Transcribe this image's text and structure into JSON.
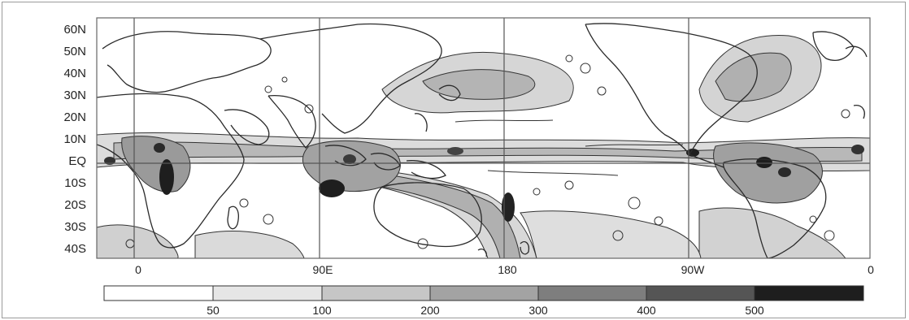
{
  "map": {
    "lat_labels": [
      "60N",
      "50N",
      "40N",
      "30N",
      "20N",
      "10N",
      "EQ",
      "10S",
      "20S",
      "30S",
      "40S"
    ],
    "lon_labels": [
      "0",
      "90E",
      "180",
      "90W",
      "0"
    ]
  },
  "colorbar": {
    "ticks": [
      "50",
      "100",
      "200",
      "300",
      "400",
      "500"
    ],
    "colors": [
      "#ffffff",
      "#e6e6e6",
      "#c6c6c6",
      "#a3a3a3",
      "#7e7e7e",
      "#555555",
      "#1e1e1e"
    ]
  },
  "colors": {
    "coast": "#2a2a2a",
    "grid": "#555555",
    "frame": "#9a9a9a"
  }
}
